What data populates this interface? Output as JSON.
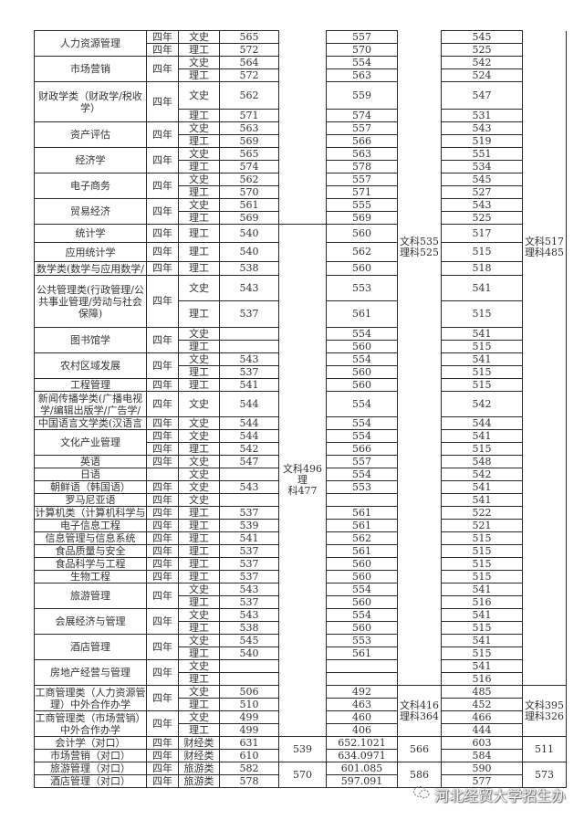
{
  "rows": [
    {
      "major": "人力资源管理",
      "major_rows": 2,
      "years": "四年",
      "category": "文史",
      "score_a": "565",
      "score_b": "557",
      "score_c": "545"
    },
    {
      "years": "四年",
      "category": "理工",
      "score_a": "572",
      "score_b": "570",
      "score_c": "525"
    },
    {
      "major": "市场营销",
      "major_rows": 2,
      "years": "四年",
      "years_rows": 2,
      "category": "文史",
      "score_a": "564",
      "score_b": "554",
      "score_c": "542"
    },
    {
      "category": "理工",
      "score_a": "572",
      "score_b": "563",
      "score_c": "524"
    },
    {
      "major": "财政学类（财政学/税收学）",
      "major_rows": 2,
      "years": "四年",
      "years_rows": 2,
      "category": "文史",
      "score_a": "562",
      "score_b": "559",
      "score_c": "547"
    },
    {
      "category": "理工",
      "score_a": "571",
      "score_b": "574",
      "score_c": "531"
    },
    {
      "major": "资产评估",
      "major_rows": 2,
      "years": "四年",
      "years_rows": 2,
      "category": "文史",
      "score_a": "563",
      "score_b": "557",
      "score_c": "543"
    },
    {
      "category": "理工",
      "score_a": "569",
      "score_b": "566",
      "score_c": "519"
    },
    {
      "major": "经济学",
      "major_rows": 2,
      "years": "四年",
      "years_rows": 2,
      "category": "文史",
      "score_a": "565",
      "score_b": "563",
      "score_c": "551"
    },
    {
      "category": "理工",
      "score_a": "574",
      "score_b": "578",
      "score_c": "534"
    },
    {
      "major": "电子商务",
      "major_rows": 2,
      "years": "四年",
      "years_rows": 2,
      "category": "文史",
      "score_a": "562",
      "score_b": "557",
      "score_c": "545"
    },
    {
      "category": "理工",
      "score_a": "570",
      "score_b": "571",
      "score_c": "527"
    },
    {
      "major": "贸易经济",
      "major_rows": 2,
      "years": "四年",
      "years_rows": 2,
      "category": "文史",
      "score_a": "561",
      "score_b": "555",
      "score_c": "543"
    },
    {
      "category": "理工",
      "score_a": "569",
      "score_b": "569",
      "score_c": "525"
    },
    {
      "major": "统计学",
      "years": "四年",
      "category": "理工",
      "score_a": "540",
      "score_b": "560",
      "score_c": "517"
    },
    {
      "major": "应用统计学",
      "years": "四年",
      "category": "理工",
      "score_a": "540",
      "score_b": "562",
      "score_c": "515"
    },
    {
      "major": "数学类(数学与应用数学/",
      "years": "四年",
      "category": "理工",
      "score_a": "538",
      "score_b": "560",
      "score_c": "518"
    },
    {
      "major": "公共管理类(行政管理/公共事业管理/劳动与社会保障)",
      "major_rows": 2,
      "years": "四年",
      "years_rows": 2,
      "category": "文史",
      "score_a": "543",
      "score_b": "553",
      "score_c": "541"
    },
    {
      "category": "理工",
      "score_a": "537",
      "score_b": "561",
      "score_c": "515"
    },
    {
      "major": "图书馆学",
      "major_rows": 2,
      "years": "四年",
      "years_rows": 2,
      "category": "文史",
      "score_a": "",
      "score_b": "554",
      "score_c": "541"
    },
    {
      "category": "理工",
      "score_a": "",
      "score_b": "560",
      "score_c": "515"
    },
    {
      "major": "农村区域发展",
      "major_rows": 2,
      "years": "四年",
      "years_rows": 2,
      "category": "文史",
      "score_a": "543",
      "score_b": "554",
      "score_c": "541"
    },
    {
      "category": "理工",
      "score_a": "537",
      "score_b": "560",
      "score_c": "515"
    },
    {
      "major": "工程管理",
      "years": "四年",
      "category": "理工",
      "score_a": "541",
      "score_b": "560",
      "score_c": "515"
    },
    {
      "major": "新闻传播学类(广播电视学/编辑出版学/广告学/",
      "years": "四年",
      "category": "文史",
      "score_a": "544",
      "score_b": "554",
      "score_c": "542"
    },
    {
      "major": "中国语言文学类(汉语言",
      "years": "四年",
      "category": "文史",
      "score_a": "544",
      "score_b": "554",
      "score_c": "544"
    },
    {
      "major": "文化产业管理",
      "major_rows": 2,
      "years": "四年",
      "category": "文史",
      "score_a": "544",
      "score_b": "554",
      "score_c": "541"
    },
    {
      "years": "四年",
      "category": "理工",
      "score_a": "542",
      "score_b": "566",
      "score_c": "515"
    },
    {
      "major": "英语",
      "years": "四年",
      "category": "文史",
      "score_a": "547",
      "score_b": "557",
      "score_c": "548"
    },
    {
      "major": "日语",
      "years": "",
      "category": "文史",
      "score_a": "",
      "score_b": "554",
      "score_c": "542"
    },
    {
      "major": "朝鲜语（韩国语）",
      "years": "四年",
      "category": "文史",
      "score_a": "543",
      "score_b": "553",
      "score_c": "541"
    },
    {
      "major": "罗马尼亚语",
      "years": "四年",
      "category": "文史",
      "score_a": "",
      "score_b": "",
      "score_c": "541"
    },
    {
      "major": "计算机类（计算机科学与",
      "years": "四年",
      "category": "理工",
      "score_a": "537",
      "score_b": "561",
      "score_c": "522"
    },
    {
      "major": "电子信息工程",
      "years": "四年",
      "category": "理工",
      "score_a": "539",
      "score_b": "561",
      "score_c": "521"
    },
    {
      "major": "信息管理与信息系统",
      "years": "四年",
      "category": "理工",
      "score_a": "541",
      "score_b": "562",
      "score_c": "515"
    },
    {
      "major": "食品质量与安全",
      "years": "四年",
      "category": "理工",
      "score_a": "537",
      "score_b": "561",
      "score_c": "515"
    },
    {
      "major": "食品科学与工程",
      "years": "四年",
      "category": "理工",
      "score_a": "537",
      "score_b": "560",
      "score_c": "515"
    },
    {
      "major": "生物工程",
      "years": "四年",
      "category": "理工",
      "score_a": "537",
      "score_b": "560",
      "score_c": "515"
    },
    {
      "major": "旅游管理",
      "major_rows": 2,
      "years": "四年",
      "years_rows": 2,
      "category": "文史",
      "score_a": "543",
      "score_b": "554",
      "score_c": "541"
    },
    {
      "category": "理工",
      "score_a": "537",
      "score_b": "560",
      "score_c": "516"
    },
    {
      "major": "会展经济与管理",
      "major_rows": 2,
      "years": "四年",
      "years_rows": 2,
      "category": "文史",
      "score_a": "543",
      "score_b": "554",
      "score_c": "541"
    },
    {
      "category": "理工",
      "score_a": "538",
      "score_b": "560",
      "score_c": "515"
    },
    {
      "major": "酒店管理",
      "major_rows": 2,
      "years": "四年",
      "years_rows": 2,
      "category": "文史",
      "score_a": "545",
      "score_b": "553",
      "score_c": "541"
    },
    {
      "category": "理工",
      "score_a": "540",
      "score_b": "561",
      "score_c": "515"
    },
    {
      "major": "房地产经营与管理",
      "major_rows": 2,
      "years": "四年",
      "years_rows": 2,
      "category": "文史",
      "score_a": "",
      "score_b": "",
      "score_c": "541"
    },
    {
      "category": "理工",
      "score_a": "",
      "score_b": "",
      "score_c": "516"
    },
    {
      "major": "工商管理类（人力资源管理）中外合作办学",
      "major_rows": 2,
      "years": "四年",
      "years_rows": 2,
      "category": "文史",
      "score_a": "506",
      "score_b": "492",
      "score_c": "485"
    },
    {
      "category": "理工",
      "score_a": "510",
      "score_b": "463",
      "score_c": "452"
    },
    {
      "major": "工商管理类（市场营销）中外合作办学",
      "major_rows": 2,
      "years": "四年",
      "years_rows": 2,
      "category": "文史",
      "score_a": "499",
      "score_b": "460",
      "score_c": "466"
    },
    {
      "category": "理工",
      "score_a": "499",
      "score_b": "406",
      "score_c": "444"
    },
    {
      "major": "会计学（对口）",
      "years": "四年",
      "category": "财经类",
      "score_a": "631",
      "score_b": "652.1021",
      "score_c": "603"
    },
    {
      "major": "市场营销（对口）",
      "years": "四年",
      "category": "财经类",
      "score_a": "610",
      "score_b": "634.0971",
      "score_c": "584"
    },
    {
      "major": "旅游管理（对口）",
      "years": "四年",
      "category": "旅游类",
      "score_a": "582",
      "score_b": "601.085",
      "score_c": "590"
    },
    {
      "major": "酒店管理（对口）",
      "years": "四年",
      "category": "旅游类",
      "score_a": "578",
      "score_b": "597.091",
      "score_c": "577"
    }
  ],
  "group_a": [
    {
      "lines": [
        ""
      ],
      "rows": 14
    },
    {
      "lines": [
        "文科496理",
        "科477"
      ],
      "rows": 36
    },
    {
      "lines": [
        "539"
      ],
      "rows": 2
    },
    {
      "lines": [
        "570"
      ],
      "rows": 2
    }
  ],
  "group_b": [
    {
      "lines": [
        "文科535",
        "理科525"
      ],
      "rows": 46
    },
    {
      "lines": [
        "文科416",
        "理科364"
      ],
      "rows": 4
    },
    {
      "lines": [
        "566"
      ],
      "rows": 2
    },
    {
      "lines": [
        "586"
      ],
      "rows": 2
    }
  ],
  "group_c": [
    {
      "lines": [
        "文科517",
        "理科485"
      ],
      "rows": 46
    },
    {
      "lines": [
        "文科395",
        "理科326"
      ],
      "rows": 4
    },
    {
      "lines": [
        "511"
      ],
      "rows": 2
    },
    {
      "lines": [
        "573"
      ],
      "rows": 2
    }
  ],
  "watermark": {
    "text": "河北经贸大学招生办",
    "icon": "wechat-icon"
  }
}
